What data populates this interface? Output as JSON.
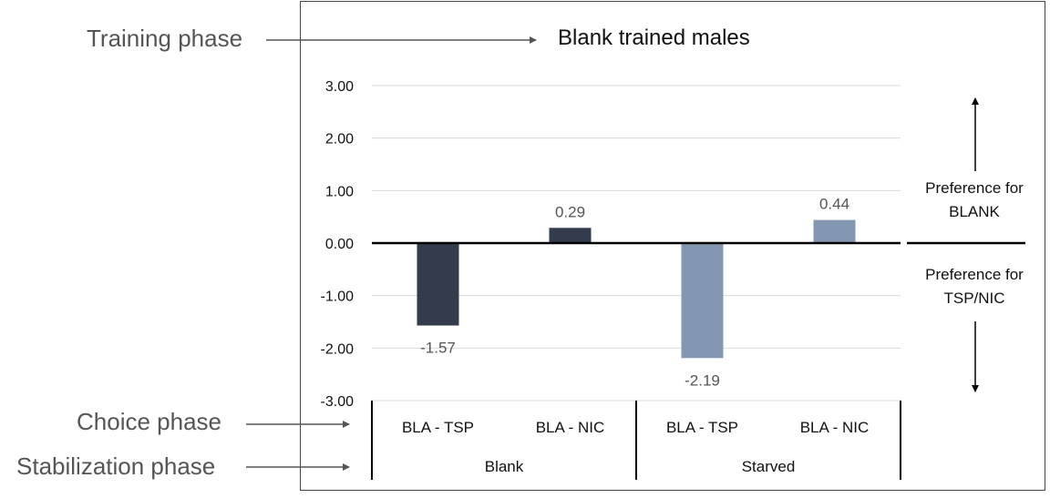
{
  "annotations": {
    "training_phase": "Training phase",
    "choice_phase": "Choice phase",
    "stabilization_phase": "Stabilization phase"
  },
  "preference": {
    "up": "Preference for BLANK",
    "down": "Preference for TSP/NIC"
  },
  "colors": {
    "blank_bars": "#323c4d",
    "starved_bars": "#8497b0",
    "gridline": "#d9d9d9",
    "axis": "#000000",
    "label_text": "#555555"
  },
  "chart_data": {
    "type": "bar",
    "title": "Blank trained males",
    "ylim": [
      -3,
      3
    ],
    "yticks": [
      "-3.00",
      "-2.00",
      "-1.00",
      "0.00",
      "1.00",
      "2.00",
      "3.00"
    ],
    "grid": true,
    "groups": [
      "Blank",
      "Starved"
    ],
    "categories": [
      "BLA - TSP",
      "BLA - NIC",
      "BLA - TSP",
      "BLA - NIC"
    ],
    "category_groups": [
      "Blank",
      "Blank",
      "Starved",
      "Starved"
    ],
    "values": [
      -1.57,
      0.29,
      -2.19,
      0.44
    ],
    "data_labels": [
      "-1.57",
      "0.29",
      "-2.19",
      "0.44"
    ]
  }
}
